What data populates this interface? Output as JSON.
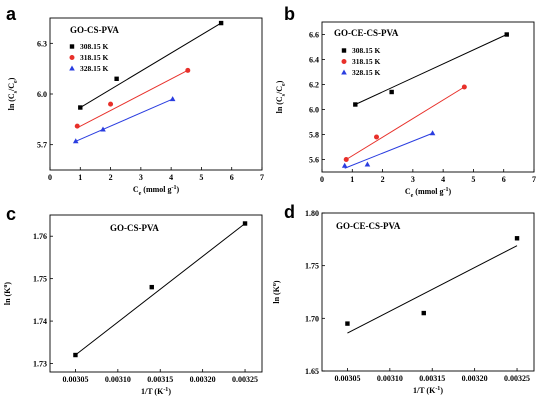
{
  "chart_data": [
    {
      "panel": "a",
      "type": "scatter",
      "title": "GO-CS-PVA",
      "xlabel": "C_e (mmol g^-1)",
      "ylabel": "ln (C_s/C_e)",
      "xlim": [
        0,
        7
      ],
      "ylim": [
        5.55,
        6.45
      ],
      "xticks": [
        0,
        1,
        2,
        3,
        4,
        5,
        6,
        7
      ],
      "yticks": [
        5.7,
        6.0,
        6.3
      ],
      "legend_position": "top-left",
      "series": [
        {
          "name": "308.15 K",
          "color": "#000000",
          "marker": "square",
          "x": [
            1.0,
            2.2,
            5.65
          ],
          "y": [
            5.92,
            6.09,
            6.42
          ],
          "fit": [
            [
              1.0,
              5.92
            ],
            [
              5.65,
              6.42
            ]
          ]
        },
        {
          "name": "318.15 K",
          "color": "#e8302a",
          "marker": "circle",
          "x": [
            0.9,
            2.0,
            4.55
          ],
          "y": [
            5.81,
            5.94,
            6.14
          ],
          "fit": [
            [
              0.9,
              5.8
            ],
            [
              4.55,
              6.14
            ]
          ]
        },
        {
          "name": "328.15 K",
          "color": "#2a3de0",
          "marker": "triangle",
          "x": [
            0.85,
            1.75,
            4.05
          ],
          "y": [
            5.72,
            5.79,
            5.97
          ],
          "fit": [
            [
              0.85,
              5.72
            ],
            [
              4.05,
              5.97
            ]
          ]
        }
      ]
    },
    {
      "panel": "b",
      "type": "scatter",
      "title": "GO-CE-CS-PVA",
      "xlabel": "C_e (mmol g^-1)",
      "ylabel": "ln (C_s/C_e)",
      "xlim": [
        0,
        7
      ],
      "ylim": [
        5.5,
        6.7
      ],
      "xticks": [
        0,
        1,
        2,
        3,
        4,
        5,
        6,
        7
      ],
      "yticks": [
        5.6,
        5.8,
        6.0,
        6.2,
        6.4,
        6.6
      ],
      "legend_position": "top-left",
      "series": [
        {
          "name": "308.15 K",
          "color": "#000000",
          "marker": "square",
          "x": [
            1.1,
            2.3,
            6.1
          ],
          "y": [
            6.04,
            6.14,
            6.6
          ],
          "fit": [
            [
              1.1,
              6.04
            ],
            [
              6.1,
              6.6
            ]
          ]
        },
        {
          "name": "318.15 K",
          "color": "#e8302a",
          "marker": "circle",
          "x": [
            0.8,
            1.8,
            4.7
          ],
          "y": [
            5.6,
            5.78,
            6.18
          ],
          "fit": [
            [
              0.8,
              5.6
            ],
            [
              4.7,
              6.18
            ]
          ]
        },
        {
          "name": "328.15 K",
          "color": "#2a3de0",
          "marker": "triangle",
          "x": [
            0.75,
            1.5,
            3.65
          ],
          "y": [
            5.55,
            5.56,
            5.81
          ],
          "fit": [
            [
              0.75,
              5.53
            ],
            [
              3.65,
              5.81
            ]
          ]
        }
      ]
    },
    {
      "panel": "c",
      "type": "scatter",
      "title": "GO-CS-PVA",
      "xlabel": "1/T (K^-1)",
      "ylabel": "ln (K^o)",
      "xlim": [
        0.00302,
        0.00327
      ],
      "ylim": [
        1.728,
        1.765
      ],
      "xticks": [
        "0.00305",
        "0.00310",
        "0.00315",
        "0.00320",
        "0.00325"
      ],
      "yticks": [
        "1.73",
        "1.74",
        "1.75",
        "1.76"
      ],
      "series": [
        {
          "name": "",
          "color": "#000000",
          "marker": "square",
          "x": [
            0.00305,
            0.00314,
            0.00325
          ],
          "y": [
            1.732,
            1.748,
            1.763
          ],
          "fit": [
            [
              0.00305,
              1.732
            ],
            [
              0.00325,
              1.763
            ]
          ]
        }
      ]
    },
    {
      "panel": "d",
      "type": "scatter",
      "title": "GO-CE-CS-PVA",
      "xlabel": "1/T (K^-1)",
      "ylabel": "ln (K^o)",
      "xlim": [
        0.00302,
        0.00327
      ],
      "ylim": [
        1.65,
        1.8
      ],
      "xticks": [
        "0.00305",
        "0.00310",
        "0.00315",
        "0.00320",
        "0.00325"
      ],
      "yticks": [
        "1.65",
        "1.70",
        "1.75",
        "1.80"
      ],
      "series": [
        {
          "name": "",
          "color": "#000000",
          "marker": "square",
          "x": [
            0.00305,
            0.00314,
            0.00325
          ],
          "y": [
            1.695,
            1.705,
            1.776
          ],
          "fit": [
            [
              0.00305,
              1.686
            ],
            [
              0.00325,
              1.769
            ]
          ]
        }
      ]
    }
  ]
}
